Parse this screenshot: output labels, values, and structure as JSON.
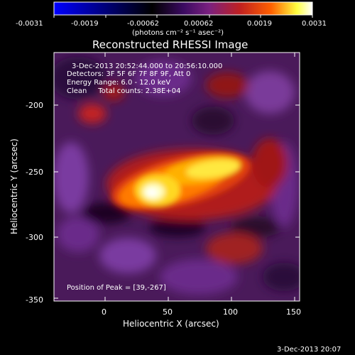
{
  "colorbar": {
    "ticks": [
      "-0.0031",
      "-0.0019",
      "-0.00062",
      "0.00062",
      "0.0019",
      "0.0031"
    ],
    "units": "(photons cm⁻² s⁻¹ asec⁻²)",
    "colors": [
      "#0000ff",
      "#000000",
      "#3a0a60",
      "#7a2080",
      "#c02020",
      "#ff6000",
      "#ffff40",
      "#ffffff"
    ]
  },
  "title": "Reconstructed RHESSI Image",
  "info": {
    "line1": "3-Dec-2013 20:52:44.000 to 20:56:10.000",
    "line2": "Detectors: 3F 5F 6F 7F 8F 9F, Att 0",
    "line3": "Energy Range: 6.0 - 12.0 keV",
    "line4": "Clean     Total counts: 2.38E+04",
    "peak": "Position of Peak = [39,-267]"
  },
  "axes": {
    "xlabel": "Heliocentric X (arcsec)",
    "ylabel": "Heliocentric Y (arcsec)",
    "xticks": [
      "0",
      "50",
      "100",
      "150"
    ],
    "yticks": [
      "-200",
      "-250",
      "-300",
      "-350"
    ],
    "xlim": [
      -40,
      150
    ],
    "ylim": [
      -350,
      -175
    ]
  },
  "timestamp": "3-Dec-2013 20:07"
}
